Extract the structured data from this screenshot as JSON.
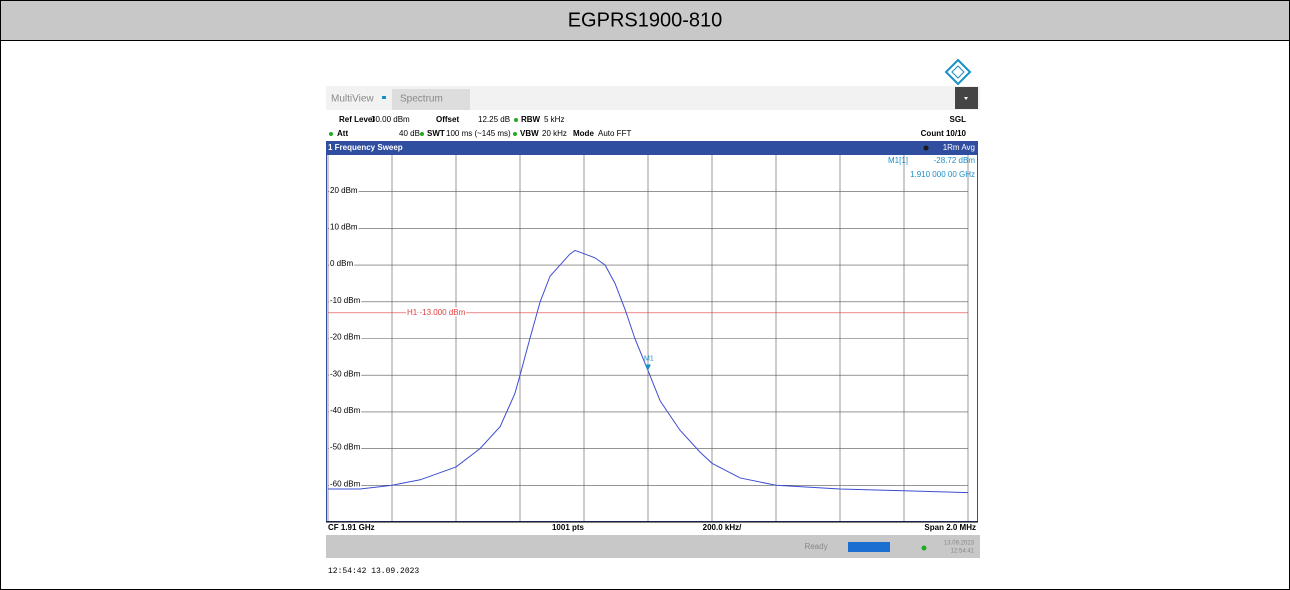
{
  "header": {
    "title": "EGPRS1900-810"
  },
  "toolbar": {
    "tab1": "MultiView",
    "tab2": "Spectrum"
  },
  "settings": {
    "ref_level_label": "Ref Level",
    "ref_level": "30.00 dBm",
    "offset_label": "Offset",
    "offset": "12.25 dB",
    "rbw_label": "RBW",
    "rbw": "5 kHz",
    "mode_top": "SGL",
    "att_label": "Att",
    "att": "40 dB",
    "swt_label": "SWT",
    "swt": "100 ms (~145 ms)",
    "vbw_label": "VBW",
    "vbw": "20 kHz",
    "mode_label": "Mode",
    "mode": "Auto FFT",
    "count": "Count 10/10"
  },
  "window": {
    "title": "1 Frequency Sweep",
    "trace": "1Rm Avg",
    "marker_name": "M1[1]",
    "marker_level": "-28.72 dBm",
    "marker_freq": "1.910 000 00 GHz"
  },
  "chart_data": {
    "type": "line",
    "x": [
      1909,
      1909.1,
      1909.2,
      1909.288,
      1909.4,
      1909.475,
      1909.538,
      1909.584,
      1909.6,
      1909.631,
      1909.663,
      1909.694,
      1909.725,
      1909.756,
      1909.772,
      1909.803,
      1909.834,
      1909.866,
      1909.897,
      1909.928,
      1909.959,
      1910,
      1910.038,
      1910.1,
      1910.163,
      1910.2,
      1910.288,
      1910.4,
      1910.6,
      1910.8,
      1911
    ],
    "series": [
      {
        "color": "#3c4fd0",
        "values": [
          -61,
          -61,
          -60,
          -58.5,
          -55,
          -50,
          -44,
          -35,
          -30,
          -20,
          -10,
          -3,
          0,
          3,
          4,
          3,
          2,
          0,
          -5,
          -12,
          -20,
          -28.72,
          -37,
          -45,
          -51,
          -54,
          -58,
          -60,
          -61,
          -61.5,
          -62
        ]
      }
    ],
    "xlim": [
      1909,
      1911
    ],
    "xticks": [
      1909,
      1909.2,
      1909.4,
      1909.6,
      1909.8,
      1910,
      1910.2,
      1910.4,
      1910.6,
      1910.8,
      1911
    ],
    "ylim": [
      -70,
      30
    ],
    "yticks": [
      {
        "value": -60,
        "label": "-60 dBm"
      },
      {
        "value": -50,
        "label": "-50 dBm"
      },
      {
        "value": -40,
        "label": "-40 dBm"
      },
      {
        "value": -30,
        "label": "-30 dBm"
      },
      {
        "value": -20,
        "label": "-20 dBm"
      },
      {
        "value": -10,
        "label": "-10 dBm"
      },
      {
        "value": 0,
        "label": "0 dBm"
      },
      {
        "value": 10,
        "label": "10 dBm"
      },
      {
        "value": 20,
        "label": "20 dBm"
      }
    ],
    "grid": true,
    "hline": {
      "value": -13,
      "label": "H1 -13.000 dBm",
      "color": "#e04040"
    },
    "marker": {
      "x": 1910,
      "y": -28.72,
      "label": "M1",
      "color": "#1a8fc8"
    }
  },
  "axis_footer": {
    "cf": "CF 1.91 GHz",
    "points": "1001 pts",
    "div": "200.0 kHz/",
    "span": "Span 2.0 MHz"
  },
  "status": {
    "state": "Ready",
    "date": "13.09.2023",
    "time": "12:54:41"
  },
  "timestamp": "12:54:42  13.09.2023"
}
